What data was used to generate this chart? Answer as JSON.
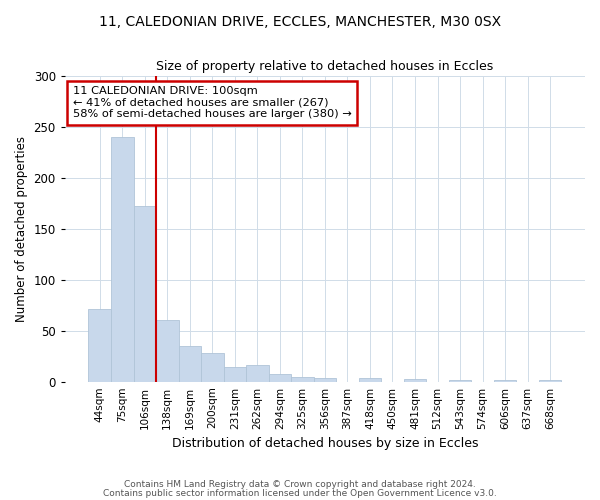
{
  "title1": "11, CALEDONIAN DRIVE, ECCLES, MANCHESTER, M30 0SX",
  "title2": "Size of property relative to detached houses in Eccles",
  "xlabel": "Distribution of detached houses by size in Eccles",
  "ylabel": "Number of detached properties",
  "categories": [
    "44sqm",
    "75sqm",
    "106sqm",
    "138sqm",
    "169sqm",
    "200sqm",
    "231sqm",
    "262sqm",
    "294sqm",
    "325sqm",
    "356sqm",
    "387sqm",
    "418sqm",
    "450sqm",
    "481sqm",
    "512sqm",
    "543sqm",
    "574sqm",
    "606sqm",
    "637sqm",
    "668sqm"
  ],
  "values": [
    71,
    240,
    172,
    60,
    35,
    28,
    14,
    16,
    8,
    5,
    4,
    0,
    4,
    0,
    3,
    0,
    2,
    0,
    2,
    0,
    2
  ],
  "bar_color": "#c8d8eb",
  "bar_edge_color": "#b0c4d8",
  "redline_x": 2.5,
  "annotation_line1": "11 CALEDONIAN DRIVE: 100sqm",
  "annotation_line2": "← 41% of detached houses are smaller (267)",
  "annotation_line3": "58% of semi-detached houses are larger (380) →",
  "annotation_box_color": "#ffffff",
  "annotation_box_edge": "#cc0000",
  "redline_color": "#cc0000",
  "footer1": "Contains HM Land Registry data © Crown copyright and database right 2024.",
  "footer2": "Contains public sector information licensed under the Open Government Licence v3.0.",
  "ylim": [
    0,
    300
  ],
  "figsize": [
    6.0,
    5.0
  ],
  "dpi": 100,
  "background_color": "#ffffff",
  "grid_color": "#d0dce8"
}
